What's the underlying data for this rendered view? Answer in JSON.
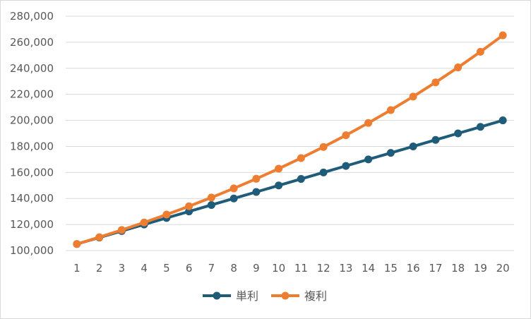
{
  "chart_data": {
    "type": "line",
    "title": "",
    "xlabel": "",
    "ylabel": "",
    "x": [
      1,
      2,
      3,
      4,
      5,
      6,
      7,
      8,
      9,
      10,
      11,
      12,
      13,
      14,
      15,
      16,
      17,
      18,
      19,
      20
    ],
    "ylim": [
      100000,
      280000
    ],
    "yticks": [
      100000,
      120000,
      140000,
      160000,
      180000,
      200000,
      220000,
      240000,
      260000,
      280000
    ],
    "ytick_labels": [
      "100,000",
      "120,000",
      "140,000",
      "160,000",
      "180,000",
      "200,000",
      "220,000",
      "240,000",
      "260,000",
      "280,000"
    ],
    "grid": true,
    "legend": "bottom",
    "series": [
      {
        "name": "単利",
        "color": "#1f5c7a",
        "values": [
          105000,
          110000,
          115000,
          120000,
          125000,
          130000,
          135000,
          140000,
          145000,
          150000,
          155000,
          160000,
          165000,
          170000,
          175000,
          180000,
          185000,
          190000,
          195000,
          200000
        ]
      },
      {
        "name": "複利",
        "color": "#ed7d31",
        "values": [
          105000,
          110250,
          115763,
          121551,
          127628,
          134010,
          140710,
          147746,
          155133,
          162889,
          171034,
          179586,
          188565,
          197993,
          207893,
          218287,
          229202,
          240662,
          252695,
          265330
        ]
      }
    ]
  }
}
